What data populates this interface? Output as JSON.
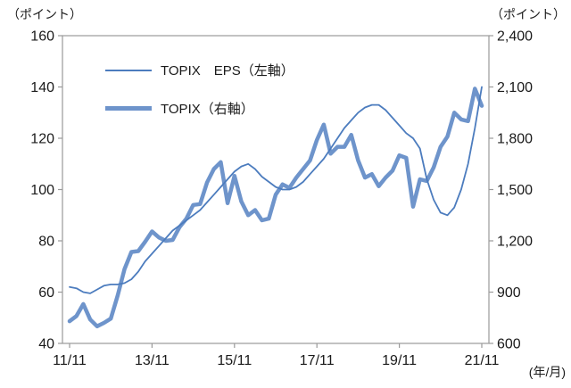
{
  "chart_data": {
    "type": "line",
    "title": "",
    "x_axis_unit": "(年/月)",
    "x_start": "2011/11",
    "x_end": "2021/11",
    "x_step_months": 2,
    "x_ticks": {
      "months": [
        0,
        24,
        48,
        72,
        96,
        120
      ],
      "labels": [
        "11/11",
        "13/11",
        "15/11",
        "17/11",
        "19/11",
        "21/11"
      ]
    },
    "left_axis": {
      "unit": "（ポイント）",
      "min": 40,
      "max": 160,
      "ticks": [
        160,
        140,
        120,
        100,
        80,
        60,
        40
      ]
    },
    "right_axis": {
      "unit": "（ポイント）",
      "min": 600,
      "max": 2400,
      "tick_values": [
        2400,
        2100,
        1800,
        1500,
        1200,
        900,
        600
      ],
      "tick_labels": [
        "2,400",
        "2,100",
        "1,800",
        "1,500",
        "1,200",
        "900",
        "600"
      ]
    },
    "grid": false,
    "legend_position": "inside-top-left",
    "series": [
      {
        "name": "TOPIX　EPS（左軸）",
        "axis": "left",
        "color": "#4C7CBE",
        "stroke_width": 1.8,
        "values": [
          62,
          61.5,
          60,
          59.5,
          61,
          62.5,
          63,
          63,
          63.5,
          65,
          68,
          72,
          75,
          78,
          81,
          84,
          86,
          88,
          90,
          92,
          95,
          98,
          101,
          104,
          107,
          109,
          110,
          108,
          105,
          103,
          101,
          100,
          100,
          101,
          103,
          106,
          109,
          112,
          116,
          120,
          124,
          127,
          130,
          132,
          133,
          133,
          131,
          128,
          125,
          122,
          120,
          116,
          104,
          96,
          91,
          90,
          93,
          100,
          110,
          124,
          140
        ]
      },
      {
        "name": "TOPIX（右軸）",
        "axis": "right",
        "color": "#6E94CB",
        "stroke_width": 4.5,
        "values": [
          730,
          760,
          830,
          740,
          700,
          720,
          745,
          880,
          1035,
          1135,
          1140,
          1195,
          1255,
          1220,
          1200,
          1205,
          1280,
          1330,
          1410,
          1415,
          1540,
          1620,
          1660,
          1420,
          1580,
          1430,
          1350,
          1380,
          1320,
          1330,
          1470,
          1530,
          1510,
          1570,
          1620,
          1670,
          1790,
          1880,
          1710,
          1750,
          1750,
          1820,
          1670,
          1570,
          1590,
          1520,
          1570,
          1610,
          1700,
          1685,
          1400,
          1560,
          1550,
          1630,
          1750,
          1810,
          1950,
          1910,
          1900,
          2090,
          1990
        ]
      }
    ]
  }
}
